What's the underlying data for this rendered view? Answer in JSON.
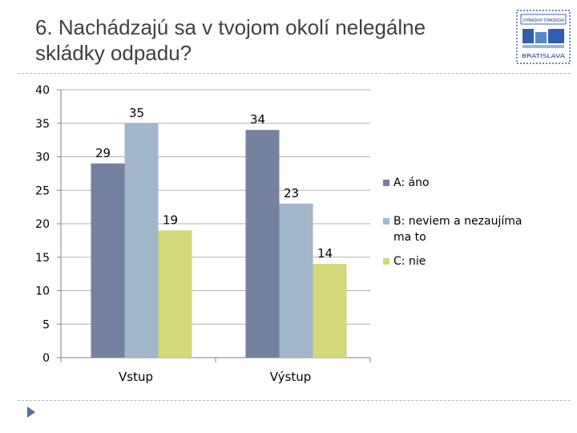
{
  "slide": {
    "title": "6. Nachádzajú sa v tvojom okolí nelegálne skládky odpadu?"
  },
  "logo": {
    "top_text": "GYMNÁZIUM TOMÁŠIKOVA",
    "bottom_text": "BRATISLAVA",
    "color": "#1a3c8c"
  },
  "chart_data": {
    "type": "bar",
    "categories": [
      "Vstup",
      "Výstup"
    ],
    "series": [
      {
        "name": "A: áno",
        "values": [
          29,
          34
        ],
        "color": "#74819f"
      },
      {
        "name": "B: neviem a nezaujíma ma to",
        "values": [
          35,
          23
        ],
        "color": "#a2b6cc"
      },
      {
        "name": "C: nie",
        "values": [
          19,
          14
        ],
        "color": "#d3d878"
      }
    ],
    "ylim": [
      0,
      40
    ],
    "yticks": [
      0,
      5,
      10,
      15,
      20,
      25,
      30,
      35,
      40
    ],
    "grid": true,
    "legend": "right"
  }
}
